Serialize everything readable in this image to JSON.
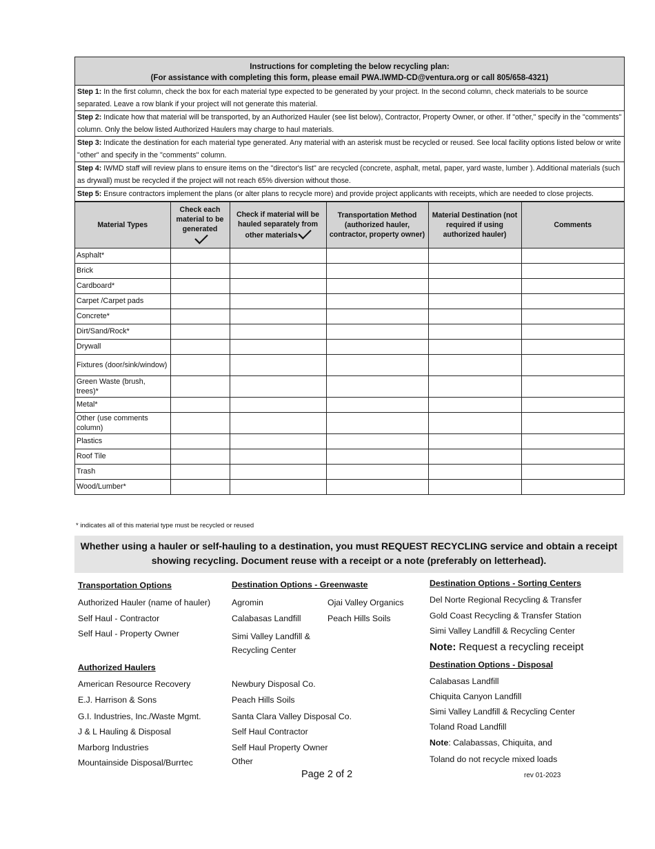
{
  "instructions": {
    "title": "Instructions for completing the below recycling plan:",
    "subtitle": "(For assistance with completing this form, please email PWA.IWMD-CD@ventura.org or call 805/658-4321)",
    "steps": [
      {
        "label": "Step 1:",
        "text": " In the first column, check the box for each material type expected to be generated by your project. In the second column, check materials to be source separated. Leave a row blank if your project will not generate this material."
      },
      {
        "label": "Step 2:",
        "text": " Indicate how that material will be transported, by an Authorized Hauler (see list below), Contractor, Property Owner, or other. If \"other,\" specify in the \"comments\" column. Only the below listed Authorized Haulers may charge to haul materials."
      },
      {
        "label": "Step 3:",
        "text": " Indicate the destination for each material type generated. Any material with an asterisk must be recycled or reused. See local facility options listed below or write \"other\" and specify in the \"comments\" column."
      },
      {
        "label": "Step 4:",
        "text": " IWMD staff will review plans to ensure items on the \"director's list\" are recycled (concrete, asphalt, metal, paper, yard waste, lumber ). Additional materials (such as drywall) must be recycled if the project will not reach 65% diversion without those."
      },
      {
        "label": "Step 5:",
        "text": " Ensure contractors implement the plans (or alter plans to recycle more) and provide project applicants with receipts, which are needed to close projects."
      }
    ]
  },
  "table": {
    "headers": [
      "Material Types",
      "Check each material to be generated",
      "Check if material will be hauled separately from other materials",
      "Transportation Method (authorized hauler, contractor, property owner)",
      "Material Destination (not required if using authorized hauler)",
      "Comments"
    ],
    "rows": [
      "Asphalt*",
      "Brick",
      "Cardboard*",
      "Carpet /Carpet pads",
      "Concrete*",
      "Dirt/Sand/Rock*",
      "Drywall",
      "Fixtures (door/sink/window)",
      "Green Waste (brush, trees)*",
      "Metal*",
      "Other  (use comments column)",
      "Plastics",
      "Roof Tile",
      "Trash",
      "Wood/Lumber*"
    ]
  },
  "footnote": "* indicates all of this material type must be recycled or reused",
  "banner": "Whether using a hauler or self-hauling to a destination, you must REQUEST RECYCLING service and obtain a receipt showing recycling. Document reuse with a receipt or a note (preferably on letterhead).",
  "transport": {
    "heading": "Transportation Options",
    "items": [
      "Authorized Hauler (name of hauler)",
      "Self Haul - Contractor",
      "Self Haul - Property Owner"
    ]
  },
  "greenwaste": {
    "heading": "Destination Options - Greenwaste",
    "items": [
      "Agromin",
      "Ojai Valley Organics",
      "Calabasas Landfill",
      "Peach Hills Soils",
      "Simi Valley Landfill &",
      "Recycling Center"
    ]
  },
  "sorting": {
    "heading": "Destination Options - Sorting Centers",
    "items": [
      "Del Norte Regional Recycling & Transfer",
      "Gold Coast Recycling & Transfer Station",
      "Simi Valley Landfill & Recycling Center"
    ],
    "note_label": "Note:",
    "note_text": " Request a recycling receipt"
  },
  "haulers": {
    "heading": "Authorized Haulers",
    "col1": [
      "American Resource Recovery",
      "E.J. Harrison & Sons",
      "G.I. Industries, Inc./Waste Mgmt.",
      "J & L Hauling & Disposal",
      "Marborg Industries",
      "Mountainside Disposal/Burrtec"
    ],
    "col2": [
      "Newbury Disposal Co.",
      "Peach Hills Soils",
      "Santa Clara Valley Disposal Co.",
      "Self Haul Contractor",
      "Self Haul Property Owner",
      "Other"
    ]
  },
  "disposal": {
    "heading": "Destination Options - Disposal",
    "items": [
      "Calabasas Landfill",
      "Chiquita Canyon Landfill",
      "Simi Valley Landfill & Recycling Center",
      "Toland Road Landfill"
    ],
    "note_label": "Note",
    "note_text": ": Calabassas, Chiquita, and",
    "note_text2": "Toland do not recycle mixed loads"
  },
  "page_label": "Page 2 of 2",
  "revision": "rev 01-2023"
}
